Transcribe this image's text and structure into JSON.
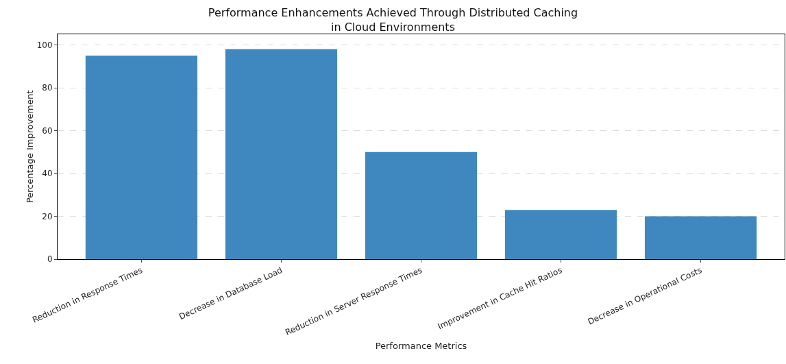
{
  "chart_data": {
    "type": "bar",
    "title": "Performance Enhancements Achieved Through Distributed Caching\nin Cloud Environments",
    "xlabel": "Performance Metrics",
    "ylabel": "Percentage Improvement",
    "categories": [
      "Reduction in Response Times",
      "Decrease in Database Load",
      "Reduction in Server Response Times",
      "Improvement in Cache Hit Ratios",
      "Decrease in Operational Costs"
    ],
    "values": [
      95,
      98,
      50,
      23,
      20
    ],
    "color": "#3f88bf",
    "ylim": [
      0,
      105
    ],
    "yticks": [
      0,
      20,
      40,
      60,
      80,
      100
    ],
    "grid": "y"
  }
}
